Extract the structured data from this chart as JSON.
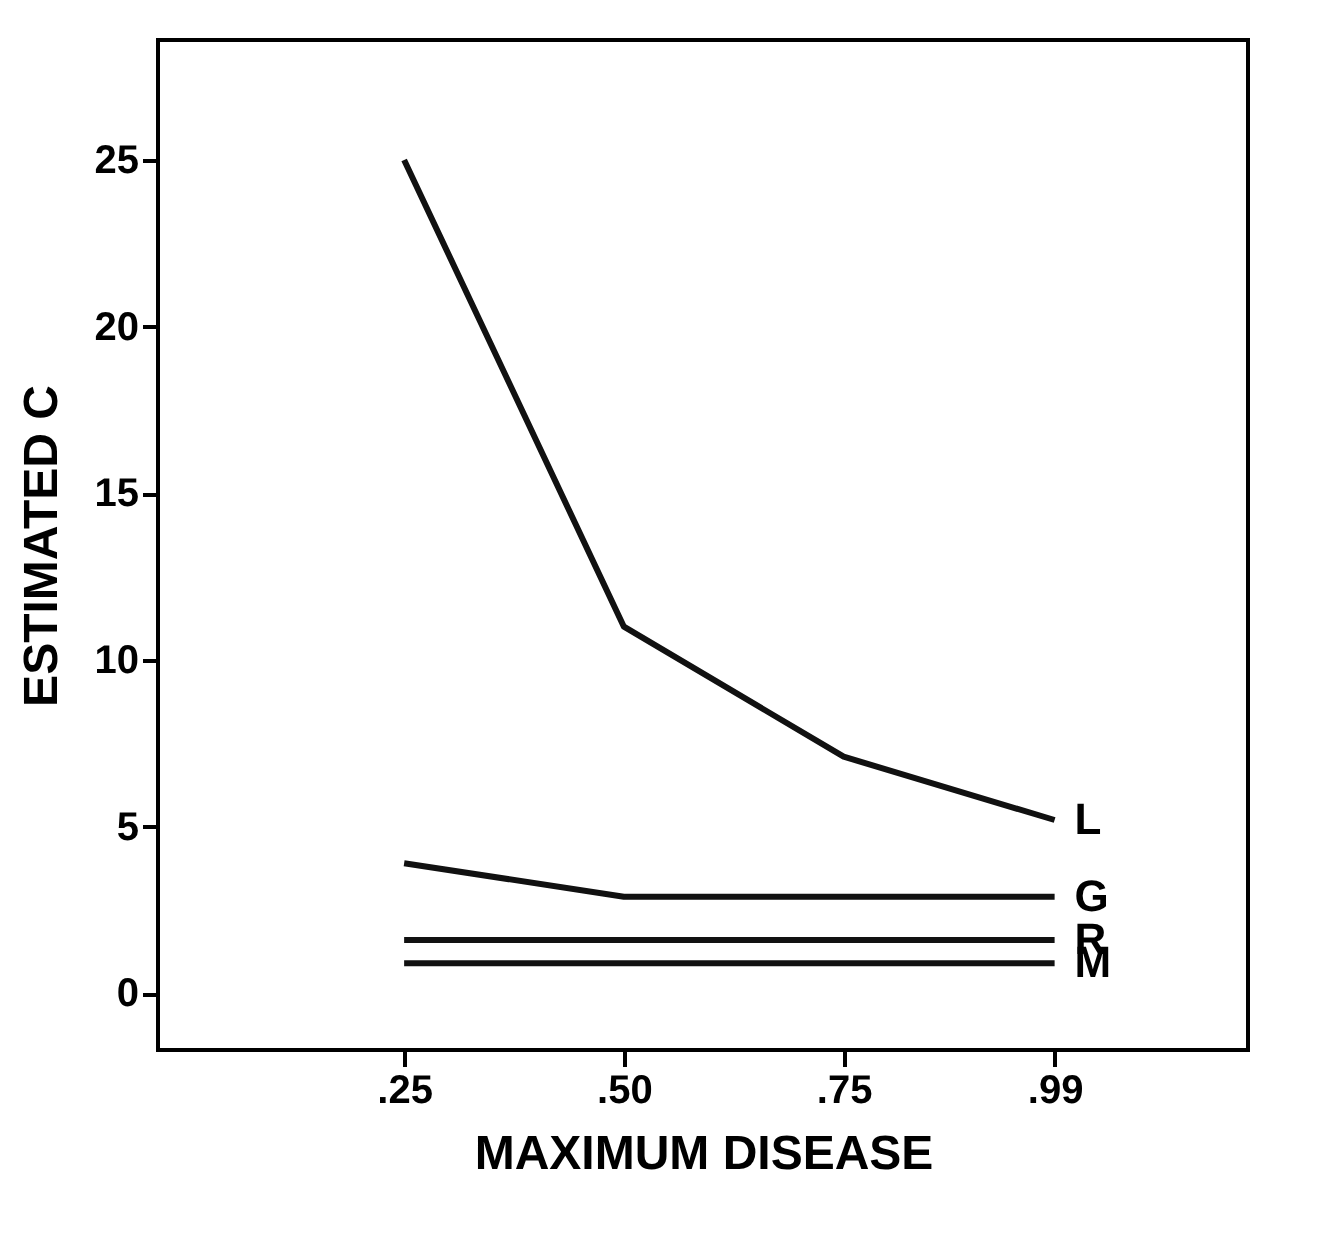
{
  "chart_data": {
    "type": "line",
    "xlabel": "MAXIMUM DISEASE",
    "ylabel": "ESTIMATED C",
    "x": [
      0.25,
      0.5,
      0.75,
      0.99
    ],
    "xlim": [
      -0.03,
      1.21
    ],
    "xticks": [
      {
        "value": 0.25,
        "label": ".25"
      },
      {
        "value": 0.5,
        "label": ".50"
      },
      {
        "value": 0.75,
        "label": ".75"
      },
      {
        "value": 0.99,
        "label": ".99"
      }
    ],
    "ylim": [
      -1.7,
      28.6
    ],
    "yticks": [
      0,
      5,
      10,
      15,
      20,
      25
    ],
    "grid": false,
    "legend": false,
    "marker": "none",
    "line_style": "solid",
    "series": [
      {
        "name": "L",
        "color": "#111111",
        "values": [
          25.0,
          11.0,
          7.1,
          5.2
        ]
      },
      {
        "name": "G",
        "color": "#111111",
        "values": [
          3.9,
          2.9,
          2.9,
          2.9
        ]
      },
      {
        "name": "R",
        "color": "#111111",
        "values": [
          1.6,
          1.6,
          1.6,
          1.6
        ]
      },
      {
        "name": "M",
        "color": "#111111",
        "values": [
          0.9,
          0.9,
          0.9,
          0.9
        ]
      }
    ]
  }
}
